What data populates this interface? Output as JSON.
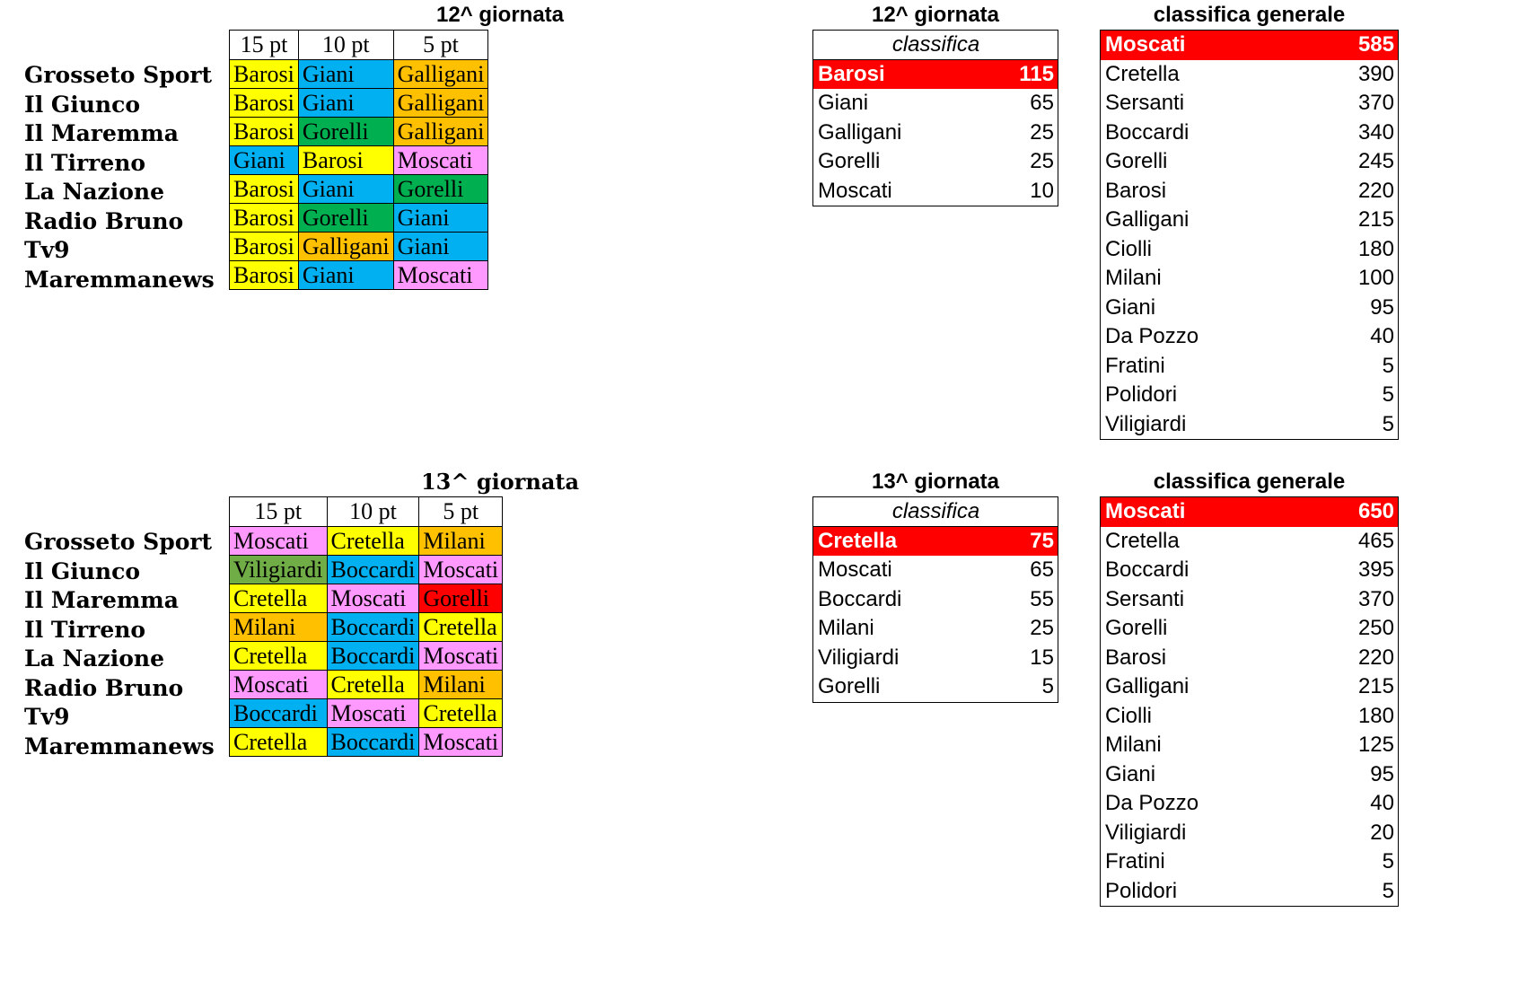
{
  "colors": {
    "Barosi": "#ffff00",
    "Cretella": "#ffff00",
    "Giani": "#00b0f0",
    "Boccardi": "#00b0f0",
    "Galligani": "#ffc000",
    "Milani": "#ffc000",
    "Gorelli_12": "#00b050",
    "Gorelli_13": "#ff0000",
    "Moscati": "#ff99ff",
    "Viligiardi": "#70ad47",
    "leader": "#ff0000"
  },
  "round12": {
    "title": "12^ giornata",
    "headers": [
      "15 pt",
      "10 pt",
      "5 pt"
    ],
    "media": [
      "Grosseto Sport",
      "Il Giunco",
      "Il Maremma",
      "Il Tirreno",
      "La Nazione",
      "Radio Bruno",
      "Tv9",
      "Maremmanews"
    ],
    "votes": [
      [
        "Barosi",
        "Giani",
        "Galligani"
      ],
      [
        "Barosi",
        "Giani",
        "Galligani"
      ],
      [
        "Barosi",
        "Gorelli",
        "Galligani"
      ],
      [
        "Giani",
        "Barosi",
        "Moscati"
      ],
      [
        "Barosi",
        "Giani",
        "Gorelli"
      ],
      [
        "Barosi",
        "Gorelli",
        "Giani"
      ],
      [
        "Barosi",
        "Galligani",
        "Giani"
      ],
      [
        "Barosi",
        "Giani",
        "Moscati"
      ]
    ],
    "classifica_title": "12^ giornata",
    "classifica_sub": "classifica",
    "classifica": [
      [
        "Barosi",
        "115"
      ],
      [
        "Giani",
        "65"
      ],
      [
        "Galligani",
        "25"
      ],
      [
        "Gorelli",
        "25"
      ],
      [
        "Moscati",
        "10"
      ]
    ],
    "generale_title": "classifica generale",
    "generale": [
      [
        "Moscati",
        "585"
      ],
      [
        "Cretella",
        "390"
      ],
      [
        "Sersanti",
        "370"
      ],
      [
        "Boccardi",
        "340"
      ],
      [
        "Gorelli",
        "245"
      ],
      [
        "Barosi",
        "220"
      ],
      [
        "Galligani",
        "215"
      ],
      [
        "Ciolli",
        "180"
      ],
      [
        "Milani",
        "100"
      ],
      [
        "Giani",
        "95"
      ],
      [
        "Da Pozzo",
        "40"
      ],
      [
        "Fratini",
        "5"
      ],
      [
        "Polidori",
        "5"
      ],
      [
        "Viligiardi",
        "5"
      ]
    ]
  },
  "round13": {
    "title": "13^ giornata",
    "headers": [
      "15 pt",
      "10 pt",
      "5 pt"
    ],
    "media": [
      "Grosseto Sport",
      "Il Giunco",
      "Il Maremma",
      "Il Tirreno",
      "La Nazione",
      "Radio Bruno",
      "Tv9",
      "Maremmanews"
    ],
    "votes": [
      [
        "Moscati",
        "Cretella",
        "Milani"
      ],
      [
        "Viligiardi",
        "Boccardi",
        "Moscati"
      ],
      [
        "Cretella",
        "Moscati",
        "Gorelli"
      ],
      [
        "Milani",
        "Boccardi",
        "Cretella"
      ],
      [
        "Cretella",
        "Boccardi",
        "Moscati"
      ],
      [
        "Moscati",
        "Cretella",
        "Milani"
      ],
      [
        "Boccardi",
        "Moscati",
        "Cretella"
      ],
      [
        "Cretella",
        "Boccardi",
        "Moscati"
      ]
    ],
    "classifica_title": "13^ giornata",
    "classifica_sub": "classifica",
    "classifica": [
      [
        "Cretella",
        "75"
      ],
      [
        "Moscati",
        "65"
      ],
      [
        "Boccardi",
        "55"
      ],
      [
        "Milani",
        "25"
      ],
      [
        "Viligiardi",
        "15"
      ],
      [
        "Gorelli",
        "5"
      ]
    ],
    "generale_title": "classifica generale",
    "generale": [
      [
        "Moscati",
        "650"
      ],
      [
        "Cretella",
        "465"
      ],
      [
        "Boccardi",
        "395"
      ],
      [
        "Sersanti",
        "370"
      ],
      [
        "Gorelli",
        "250"
      ],
      [
        "Barosi",
        "220"
      ],
      [
        "Galligani",
        "215"
      ],
      [
        "Ciolli",
        "180"
      ],
      [
        "Milani",
        "125"
      ],
      [
        "Giani",
        "95"
      ],
      [
        "Da Pozzo",
        "40"
      ],
      [
        "Viligiardi",
        "20"
      ],
      [
        "Fratini",
        "5"
      ],
      [
        "Polidori",
        "5"
      ]
    ]
  }
}
